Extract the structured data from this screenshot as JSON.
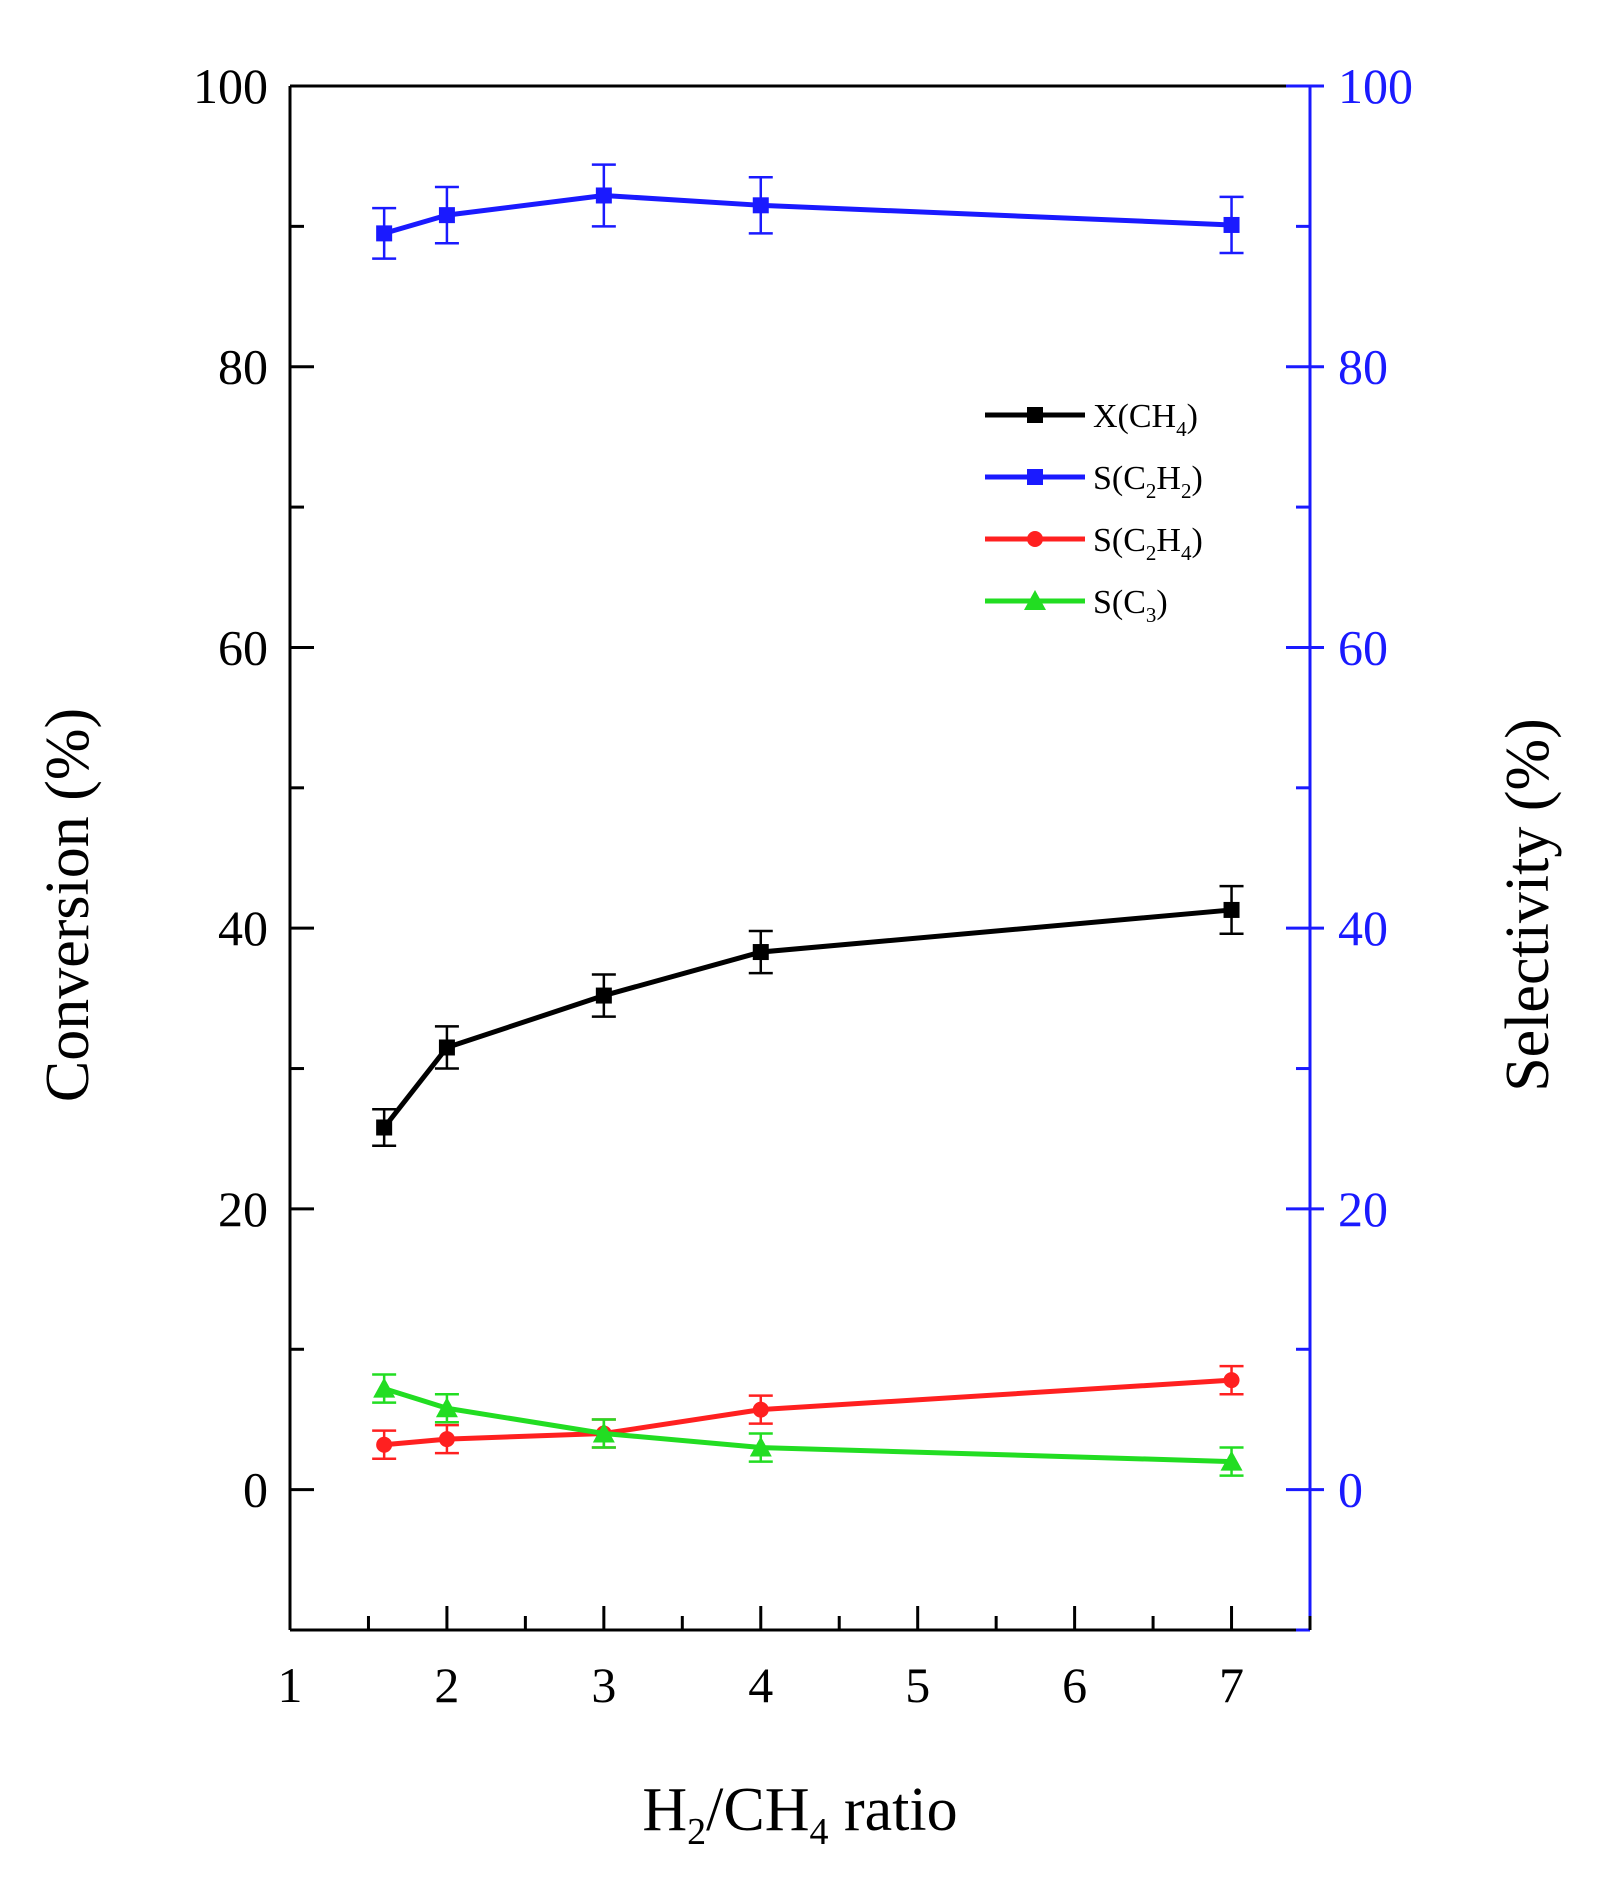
{
  "chart_data": {
    "type": "line",
    "x": [
      1.6,
      2,
      3,
      4,
      7
    ],
    "x_ticks": [
      1,
      2,
      3,
      4,
      5,
      6,
      7
    ],
    "xlim": [
      1,
      7.5
    ],
    "left_ylim": [
      -10,
      100
    ],
    "right_ylim": [
      -10,
      100
    ],
    "left_ticks": [
      0,
      20,
      40,
      60,
      80,
      100
    ],
    "right_ticks": [
      0,
      20,
      40,
      60,
      80,
      100
    ],
    "xlabel": {
      "main": "H",
      "sub1": "2",
      "mid": "/CH",
      "sub2": "4",
      "tail": " ratio"
    },
    "ylabel_left": "Conversion (%)",
    "ylabel_right": "Selectivity (%)",
    "right_axis_color": "#1a1aff",
    "grid": false,
    "legend_position": "upper-right",
    "series": [
      {
        "id": "x-ch4",
        "legend": {
          "main": "X(CH",
          "sub": "4",
          "tail": ")"
        },
        "color": "#000000",
        "marker": "square",
        "axis": "left",
        "values": [
          25.8,
          31.5,
          35.2,
          38.3,
          41.3
        ],
        "errors": [
          1.3,
          1.5,
          1.5,
          1.5,
          1.7
        ]
      },
      {
        "id": "s-c2h2",
        "legend": {
          "main": "S(C",
          "sub": "2",
          "mid": "H",
          "sub2": "2",
          "tail": ")"
        },
        "color": "#1a1aff",
        "marker": "square",
        "axis": "right",
        "values": [
          89.5,
          90.8,
          92.2,
          91.5,
          90.1
        ],
        "errors": [
          1.8,
          2.0,
          2.2,
          2.0,
          2.0
        ]
      },
      {
        "id": "s-c2h4",
        "legend": {
          "main": "S(C",
          "sub": "2",
          "mid": "H",
          "sub2": "4",
          "tail": ")"
        },
        "color": "#ff2020",
        "marker": "circle",
        "axis": "right",
        "values": [
          3.2,
          3.6,
          4.0,
          5.7,
          7.8
        ],
        "errors": [
          1.0,
          1.0,
          1.0,
          1.0,
          1.0
        ]
      },
      {
        "id": "s-c3",
        "legend": {
          "main": "S(C",
          "sub": "3",
          "tail": ")"
        },
        "color": "#22dd22",
        "marker": "triangle",
        "axis": "right",
        "values": [
          7.2,
          5.8,
          4.0,
          3.0,
          2.0
        ],
        "errors": [
          1.0,
          1.0,
          1.0,
          1.0,
          1.0
        ]
      }
    ]
  }
}
